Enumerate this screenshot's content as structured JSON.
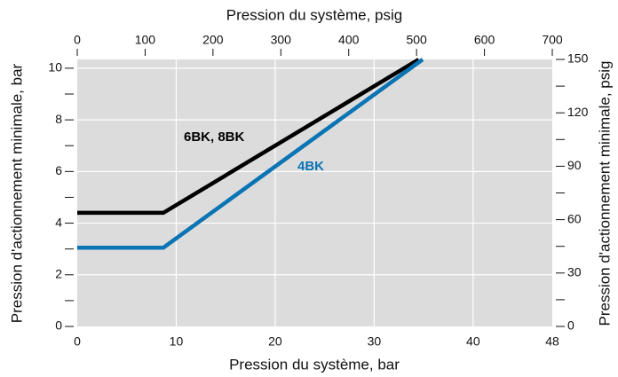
{
  "chart_data": {
    "type": "line",
    "xlabel": "Pression du système, bar",
    "x2label": "Pression du système, psig",
    "ylabel": "Pression d'actionnement minimale, bar",
    "y2label": "Pression d'actionnement minimale, psig",
    "xlim": [
      0,
      48
    ],
    "xticks": [
      0,
      10,
      20,
      30,
      40,
      48
    ],
    "x2lim": [
      0,
      700
    ],
    "x2ticks": [
      0,
      100,
      200,
      300,
      400,
      500,
      600,
      700
    ],
    "ylim": [
      0,
      10.34
    ],
    "yticks": [
      0,
      2,
      4,
      6,
      8,
      10
    ],
    "y_minor_ticks": [
      1,
      3,
      5,
      7,
      9
    ],
    "y2lim": [
      0,
      150
    ],
    "y2ticks": [
      0,
      30,
      60,
      90,
      120,
      150
    ],
    "y2_minor_ticks": [
      15,
      45,
      75,
      105,
      135
    ],
    "grid": true,
    "background": "#dcdcdc",
    "series": [
      {
        "name": "6BK, 8BK",
        "color": "#000000",
        "x": [
          0,
          8.7,
          34.5
        ],
        "values": [
          4.4,
          4.4,
          10.34
        ]
      },
      {
        "name": "4BK",
        "color": "#0a74b4",
        "x": [
          0,
          8.7,
          34.9
        ],
        "values": [
          3.05,
          3.05,
          10.34
        ]
      }
    ]
  }
}
